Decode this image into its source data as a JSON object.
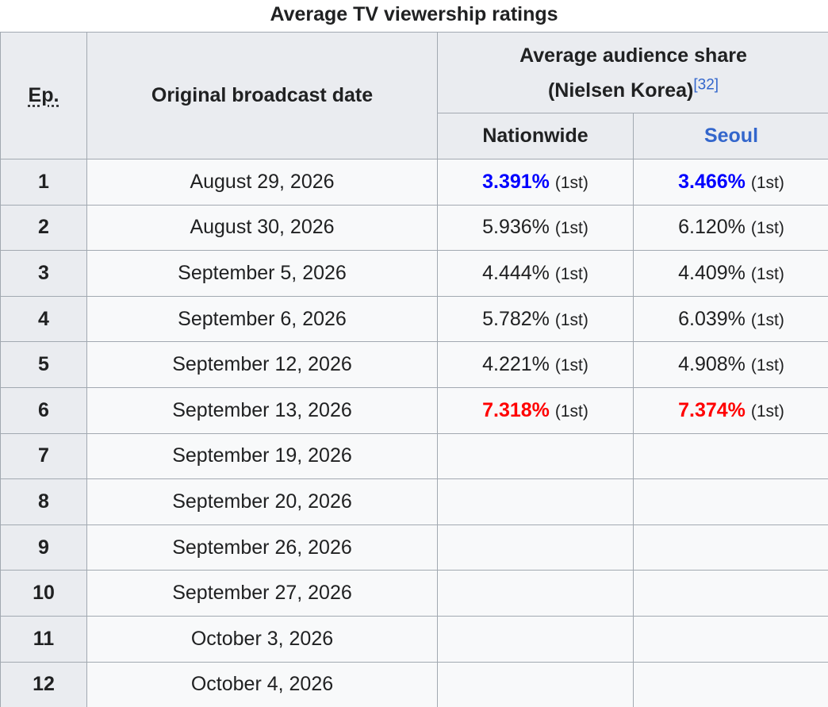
{
  "caption": "Average TV viewership ratings",
  "headers": {
    "episode": "Ep.",
    "broadcast_date": "Original broadcast date",
    "share_line1": "Average audience share",
    "share_line2": "(Nielsen Korea)",
    "share_ref": "[32]",
    "nationwide": "Nationwide",
    "seoul": "Seoul"
  },
  "colors": {
    "lowest": "#0000ff",
    "highest": "#ff0000",
    "link": "#3366cc",
    "header_bg": "#eaecf0",
    "cell_bg": "#f8f9fa",
    "border": "#a2a9b1"
  },
  "rows": [
    {
      "ep": "1",
      "date": "August 29, 2026",
      "nationwide": "3.391%",
      "nationwide_rank": "(1st)",
      "seoul": "3.466%",
      "seoul_rank": "(1st)",
      "highlight": "lowest"
    },
    {
      "ep": "2",
      "date": "August 30, 2026",
      "nationwide": "5.936%",
      "nationwide_rank": "(1st)",
      "seoul": "6.120%",
      "seoul_rank": "(1st)",
      "highlight": ""
    },
    {
      "ep": "3",
      "date": "September 5, 2026",
      "nationwide": "4.444%",
      "nationwide_rank": "(1st)",
      "seoul": "4.409%",
      "seoul_rank": "(1st)",
      "highlight": ""
    },
    {
      "ep": "4",
      "date": "September 6, 2026",
      "nationwide": "5.782%",
      "nationwide_rank": "(1st)",
      "seoul": "6.039%",
      "seoul_rank": "(1st)",
      "highlight": ""
    },
    {
      "ep": "5",
      "date": "September 12, 2026",
      "nationwide": "4.221%",
      "nationwide_rank": "(1st)",
      "seoul": "4.908%",
      "seoul_rank": "(1st)",
      "highlight": ""
    },
    {
      "ep": "6",
      "date": "September 13, 2026",
      "nationwide": "7.318%",
      "nationwide_rank": "(1st)",
      "seoul": "7.374%",
      "seoul_rank": "(1st)",
      "highlight": "highest"
    },
    {
      "ep": "7",
      "date": "September 19, 2026",
      "nationwide": "",
      "nationwide_rank": "",
      "seoul": "",
      "seoul_rank": "",
      "highlight": ""
    },
    {
      "ep": "8",
      "date": "September 20, 2026",
      "nationwide": "",
      "nationwide_rank": "",
      "seoul": "",
      "seoul_rank": "",
      "highlight": ""
    },
    {
      "ep": "9",
      "date": "September 26, 2026",
      "nationwide": "",
      "nationwide_rank": "",
      "seoul": "",
      "seoul_rank": "",
      "highlight": ""
    },
    {
      "ep": "10",
      "date": "September 27, 2026",
      "nationwide": "",
      "nationwide_rank": "",
      "seoul": "",
      "seoul_rank": "",
      "highlight": ""
    },
    {
      "ep": "11",
      "date": "October 3, 2026",
      "nationwide": "",
      "nationwide_rank": "",
      "seoul": "",
      "seoul_rank": "",
      "highlight": ""
    },
    {
      "ep": "12",
      "date": "October 4, 2026",
      "nationwide": "",
      "nationwide_rank": "",
      "seoul": "",
      "seoul_rank": "",
      "highlight": ""
    }
  ]
}
